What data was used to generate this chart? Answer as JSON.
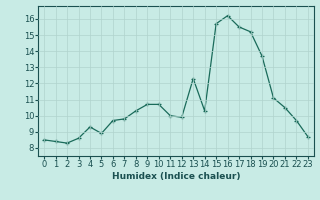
{
  "x": [
    0,
    1,
    2,
    3,
    4,
    5,
    6,
    7,
    8,
    9,
    10,
    11,
    12,
    13,
    14,
    15,
    16,
    17,
    18,
    19,
    20,
    21,
    22,
    23
  ],
  "y": [
    8.5,
    8.4,
    8.3,
    8.6,
    9.3,
    8.9,
    9.7,
    9.8,
    10.3,
    10.7,
    10.7,
    10.0,
    9.9,
    12.3,
    10.3,
    15.7,
    16.2,
    15.5,
    15.2,
    13.7,
    11.1,
    10.5,
    9.7,
    8.7
  ],
  "xlabel": "Humidex (Indice chaleur)",
  "xlim": [
    -0.5,
    23.5
  ],
  "ylim": [
    7.5,
    16.8
  ],
  "yticks": [
    8,
    9,
    10,
    11,
    12,
    13,
    14,
    15,
    16
  ],
  "xticks": [
    0,
    1,
    2,
    3,
    4,
    5,
    6,
    7,
    8,
    9,
    10,
    11,
    12,
    13,
    14,
    15,
    16,
    17,
    18,
    19,
    20,
    21,
    22,
    23
  ],
  "line_color": "#1a6b5a",
  "bg_color": "#c8ebe5",
  "grid_color": "#b0d4ce",
  "text_color": "#1a5050",
  "xlabel_fontsize": 6.5,
  "tick_fontsize": 6
}
